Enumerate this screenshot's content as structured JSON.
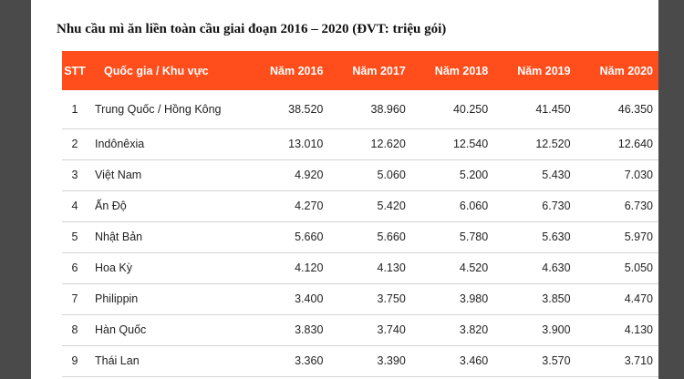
{
  "title": "Nhu cầu mì ăn liền toàn cầu giai đoạn 2016 – 2020 (ĐVT: triệu gói)",
  "colors": {
    "header_bg": "#ff4d1c",
    "header_text": "#ffffff"
  },
  "table": {
    "headers": [
      "STT",
      "Quốc gia / Khu vực",
      "Năm 2016",
      "Năm 2017",
      "Năm 2018",
      "Năm 2019",
      "Năm 2020"
    ],
    "rows": [
      [
        "1",
        "Trung Quốc / Hồng Kông",
        "38.520",
        "38.960",
        "40.250",
        "41.450",
        "46.350"
      ],
      [
        "2",
        "Indônêxia",
        "13.010",
        "12.620",
        "12.540",
        "12.520",
        "12.640"
      ],
      [
        "3",
        "Việt Nam",
        "4.920",
        "5.060",
        "5.200",
        "5.430",
        "7.030"
      ],
      [
        "4",
        "Ấn Độ",
        "4.270",
        "5.420",
        "6.060",
        "6.730",
        "6.730"
      ],
      [
        "5",
        "Nhật Bản",
        "5.660",
        "5.660",
        "5.780",
        "5.630",
        "5.970"
      ],
      [
        "6",
        "Hoa Kỳ",
        "4.120",
        "4.130",
        "4.520",
        "4.630",
        "5.050"
      ],
      [
        "7",
        "Philippin",
        "3.400",
        "3.750",
        "3.980",
        "3.850",
        "4.470"
      ],
      [
        "8",
        "Hàn Quốc",
        "3.830",
        "3.740",
        "3.820",
        "3.900",
        "4.130"
      ],
      [
        "9",
        "Thái Lan",
        "3.360",
        "3.390",
        "3.460",
        "3.570",
        "3.710"
      ]
    ]
  }
}
